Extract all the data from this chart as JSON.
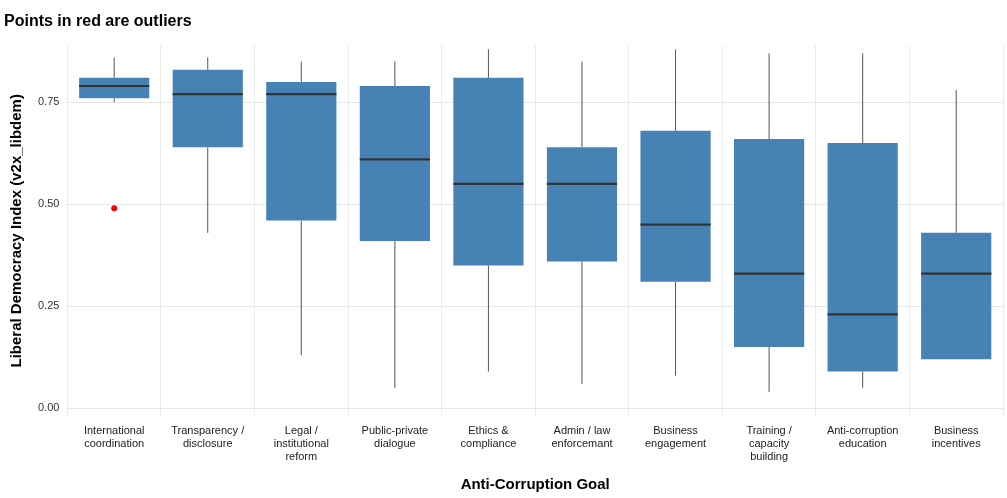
{
  "chart_data": {
    "type": "box",
    "title": "Points in red are outliers",
    "xlabel": "Anti-Corruption Goal",
    "ylabel": "Liberal Democracy Index (v2x_libdem)",
    "categories": [
      "International coordination",
      "Transparency / disclosure",
      "Legal / institutional reform",
      "Public-private dialogue",
      "Ethics & compliance",
      "Admin / law enforcemant",
      "Business engagement",
      "Training / capacity building",
      "Anti-corruption education",
      "Business incentives"
    ],
    "series": [
      {
        "color": "#4682b4",
        "boxes": [
          {
            "low": 0.75,
            "q1": 0.76,
            "median": 0.79,
            "q3": 0.81,
            "high": 0.86,
            "outliers": [
              0.49
            ]
          },
          {
            "low": 0.43,
            "q1": 0.64,
            "median": 0.77,
            "q3": 0.83,
            "high": 0.86
          },
          {
            "low": 0.13,
            "q1": 0.46,
            "median": 0.77,
            "q3": 0.8,
            "high": 0.85
          },
          {
            "low": 0.05,
            "q1": 0.41,
            "median": 0.61,
            "q3": 0.79,
            "high": 0.85
          },
          {
            "low": 0.09,
            "q1": 0.35,
            "median": 0.55,
            "q3": 0.81,
            "high": 0.88
          },
          {
            "low": 0.06,
            "q1": 0.36,
            "median": 0.55,
            "q3": 0.64,
            "high": 0.85
          },
          {
            "low": 0.08,
            "q1": 0.31,
            "median": 0.45,
            "q3": 0.68,
            "high": 0.88
          },
          {
            "low": 0.04,
            "q1": 0.15,
            "median": 0.33,
            "q3": 0.66,
            "high": 0.87
          },
          {
            "low": 0.05,
            "q1": 0.09,
            "median": 0.23,
            "q3": 0.65,
            "high": 0.87
          },
          {
            "low": 0.12,
            "q1": 0.12,
            "median": 0.33,
            "q3": 0.43,
            "high": 0.78
          }
        ]
      }
    ],
    "ylim": [
      -0.02,
      0.89
    ],
    "yticks": [
      {
        "value": 0,
        "label": "0.00"
      },
      {
        "value": 0.25,
        "label": "0.25"
      },
      {
        "value": 0.5,
        "label": "0.50"
      },
      {
        "value": 0.75,
        "label": "0.75"
      }
    ],
    "grid": true,
    "legend": false
  }
}
